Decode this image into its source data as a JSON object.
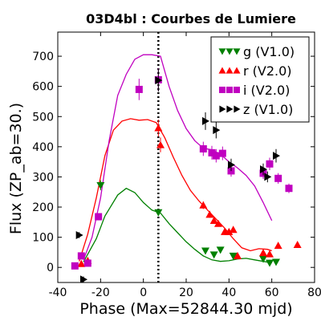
{
  "chart_data": {
    "type": "scatter",
    "title": "03D4bl : Courbes de Lumiere",
    "xlabel": "Phase (Max=52844.30 mjd)",
    "ylabel": "Flux (ZP_ab=30.)",
    "xlim": [
      -40,
      80
    ],
    "ylim": [
      -50,
      780
    ],
    "xticks": [
      -40,
      -20,
      0,
      20,
      40,
      60,
      80
    ],
    "yticks": [
      0,
      100,
      200,
      300,
      400,
      500,
      600,
      700
    ],
    "grid": false,
    "legend_position": "top-right",
    "max_phase_line": 7,
    "series": [
      {
        "name": "g (V1.0)",
        "color": "#008000",
        "marker": "triangle-down",
        "points": [
          [
            -20,
            272
          ],
          [
            7,
            182
          ],
          [
            29,
            55
          ],
          [
            33,
            42
          ],
          [
            36,
            58
          ],
          [
            42,
            38
          ],
          [
            56,
            28
          ],
          [
            59,
            15
          ],
          [
            62,
            18
          ]
        ],
        "curve": [
          [
            -28,
            18
          ],
          [
            -22,
            95
          ],
          [
            -18,
            170
          ],
          [
            -12,
            240
          ],
          [
            -8,
            262
          ],
          [
            -4,
            248
          ],
          [
            0,
            215
          ],
          [
            4,
            190
          ],
          [
            8,
            180
          ],
          [
            12,
            145
          ],
          [
            16,
            115
          ],
          [
            20,
            85
          ],
          [
            24,
            60
          ],
          [
            28,
            38
          ],
          [
            32,
            25
          ],
          [
            36,
            20
          ],
          [
            40,
            22
          ],
          [
            44,
            28
          ],
          [
            48,
            30
          ],
          [
            52,
            25
          ],
          [
            56,
            20
          ],
          [
            60,
            15
          ]
        ]
      },
      {
        "name": "r (V2.0)",
        "color": "#ff0000",
        "marker": "triangle-up",
        "points": [
          [
            -29,
            12
          ],
          [
            -26,
            22
          ],
          [
            7,
            462
          ],
          [
            8,
            406
          ],
          [
            28,
            206
          ],
          [
            31,
            175
          ],
          [
            33,
            155
          ],
          [
            35,
            145
          ],
          [
            38,
            118
          ],
          [
            40,
            118
          ],
          [
            42,
            125
          ],
          [
            44,
            38
          ],
          [
            56,
            48
          ],
          [
            59,
            44
          ],
          [
            63,
            72
          ],
          [
            72,
            75
          ]
        ],
        "curve": [
          [
            -30,
            20
          ],
          [
            -26,
            110
          ],
          [
            -22,
            230
          ],
          [
            -18,
            370
          ],
          [
            -14,
            455
          ],
          [
            -10,
            485
          ],
          [
            -6,
            493
          ],
          [
            -2,
            488
          ],
          [
            2,
            490
          ],
          [
            6,
            480
          ],
          [
            10,
            430
          ],
          [
            14,
            365
          ],
          [
            18,
            305
          ],
          [
            22,
            255
          ],
          [
            26,
            220
          ],
          [
            30,
            190
          ],
          [
            34,
            160
          ],
          [
            38,
            130
          ],
          [
            42,
            95
          ],
          [
            46,
            65
          ],
          [
            50,
            55
          ],
          [
            54,
            62
          ],
          [
            58,
            60
          ],
          [
            60,
            55
          ]
        ]
      },
      {
        "name": "i (V2.0)",
        "color": "#c000c0",
        "marker": "square",
        "points": [
          [
            -32,
            5
          ],
          [
            -29,
            38
          ],
          [
            -26,
            14
          ],
          [
            -21,
            168
          ],
          [
            -2,
            590
          ],
          [
            7,
            622
          ],
          [
            28,
            393
          ],
          [
            32,
            380
          ],
          [
            34,
            370
          ],
          [
            37,
            378
          ],
          [
            41,
            320
          ],
          [
            56,
            312
          ],
          [
            59,
            343
          ],
          [
            63,
            295
          ],
          [
            68,
            262
          ]
        ],
        "curve": [
          [
            -28,
            25
          ],
          [
            -24,
            100
          ],
          [
            -20,
            230
          ],
          [
            -16,
            420
          ],
          [
            -12,
            570
          ],
          [
            -8,
            640
          ],
          [
            -4,
            690
          ],
          [
            0,
            705
          ],
          [
            4,
            705
          ],
          [
            8,
            700
          ],
          [
            12,
            600
          ],
          [
            16,
            520
          ],
          [
            20,
            460
          ],
          [
            24,
            420
          ],
          [
            28,
            395
          ],
          [
            32,
            390
          ],
          [
            36,
            375
          ],
          [
            40,
            350
          ],
          [
            44,
            330
          ],
          [
            48,
            305
          ],
          [
            52,
            270
          ],
          [
            56,
            215
          ],
          [
            60,
            155
          ]
        ]
      },
      {
        "name": "z (V1.0)",
        "color": "#000000",
        "marker": "triangle-right",
        "points": [
          [
            -30,
            107
          ],
          [
            -28,
            -40
          ],
          [
            7,
            620
          ],
          [
            29,
            485
          ],
          [
            34,
            455
          ],
          [
            41,
            340
          ],
          [
            56,
            325
          ],
          [
            58,
            300
          ],
          [
            62,
            370
          ]
        ],
        "curve": []
      }
    ]
  }
}
